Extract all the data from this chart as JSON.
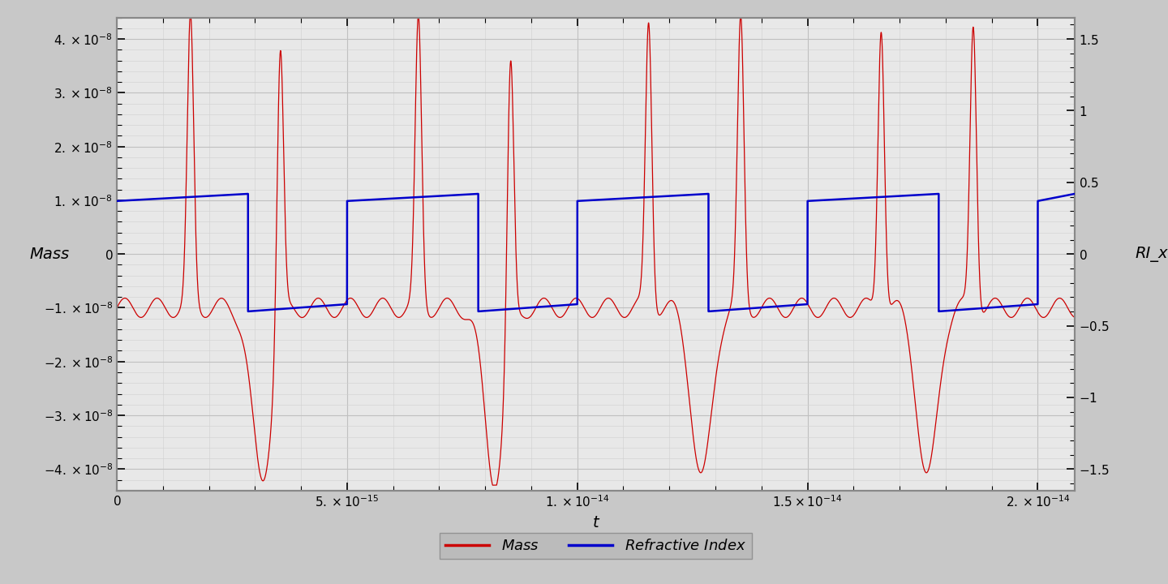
{
  "xlabel": "t",
  "ylabel_left": "Mass",
  "ylabel_right": "RI_x",
  "xlim": [
    0,
    2.08e-14
  ],
  "ylim_left": [
    -4.4e-08,
    4.4e-08
  ],
  "ylim_right": [
    -1.65,
    1.65
  ],
  "xticks": [
    0,
    5e-15,
    1e-14,
    1.5e-14,
    2e-14
  ],
  "yticks_left": [
    -4e-08,
    -3e-08,
    -2e-08,
    -1e-08,
    0,
    1e-08,
    2e-08,
    3e-08,
    4e-08
  ],
  "yticks_right": [
    -1.5,
    -1.0,
    -0.5,
    0,
    0.5,
    1.0,
    1.5
  ],
  "mass_color": "#cc0000",
  "ri_color": "#0000cc",
  "plot_bg": "#e8e8e8",
  "fig_bg": "#c8c8c8",
  "grid_color": "#d8d8d8",
  "legend_entries": [
    "Mass",
    "Refractive Index"
  ],
  "ri_high": 0.37,
  "ri_low": -0.4,
  "spike_times_e15": [
    1.6,
    3.55,
    6.55,
    8.55,
    11.55,
    13.55,
    16.6,
    18.6
  ],
  "neg_dip_times_e15": [
    3.15,
    8.2,
    12.7,
    17.6
  ],
  "ri_switch_down_e15": [
    2.85,
    7.85,
    12.85,
    17.85
  ],
  "ri_switch_up_e15": [
    5.0,
    10.0,
    15.0,
    20.0
  ]
}
